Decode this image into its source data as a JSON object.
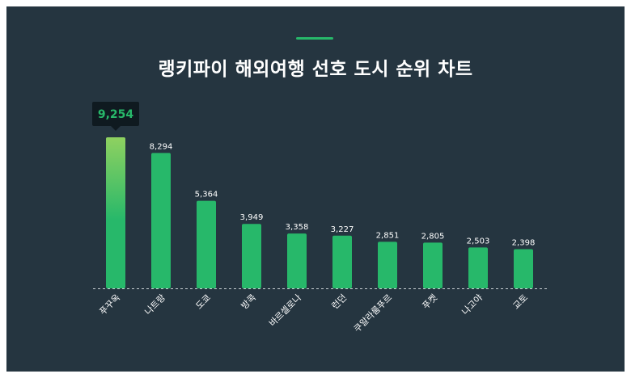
{
  "chart_data": {
    "type": "bar",
    "title": "랭키파이 해외여행 선호 도시 순위 차트",
    "categories": [
      "푸꾸옥",
      "나트랑",
      "도쿄",
      "방콕",
      "바르셀로나",
      "런던",
      "쿠알라룸푸르",
      "푸켓",
      "나고야",
      "교토"
    ],
    "values": [
      9254,
      8294,
      5364,
      3949,
      3358,
      3227,
      2851,
      2805,
      2503,
      2398
    ],
    "value_labels": [
      "9,254",
      "8,294",
      "5,364",
      "3,949",
      "3,358",
      "3,227",
      "2,851",
      "2,805",
      "2,503",
      "2,398"
    ],
    "ylim": [
      0,
      10000
    ],
    "grid": false,
    "highlight_index": 0
  },
  "colors": {
    "background": "#253540",
    "bar": "#27b86a",
    "bar_highlight_top": "#8fd160",
    "tooltip_bg": "#0f1a20",
    "baseline": "#c8d0d4"
  }
}
